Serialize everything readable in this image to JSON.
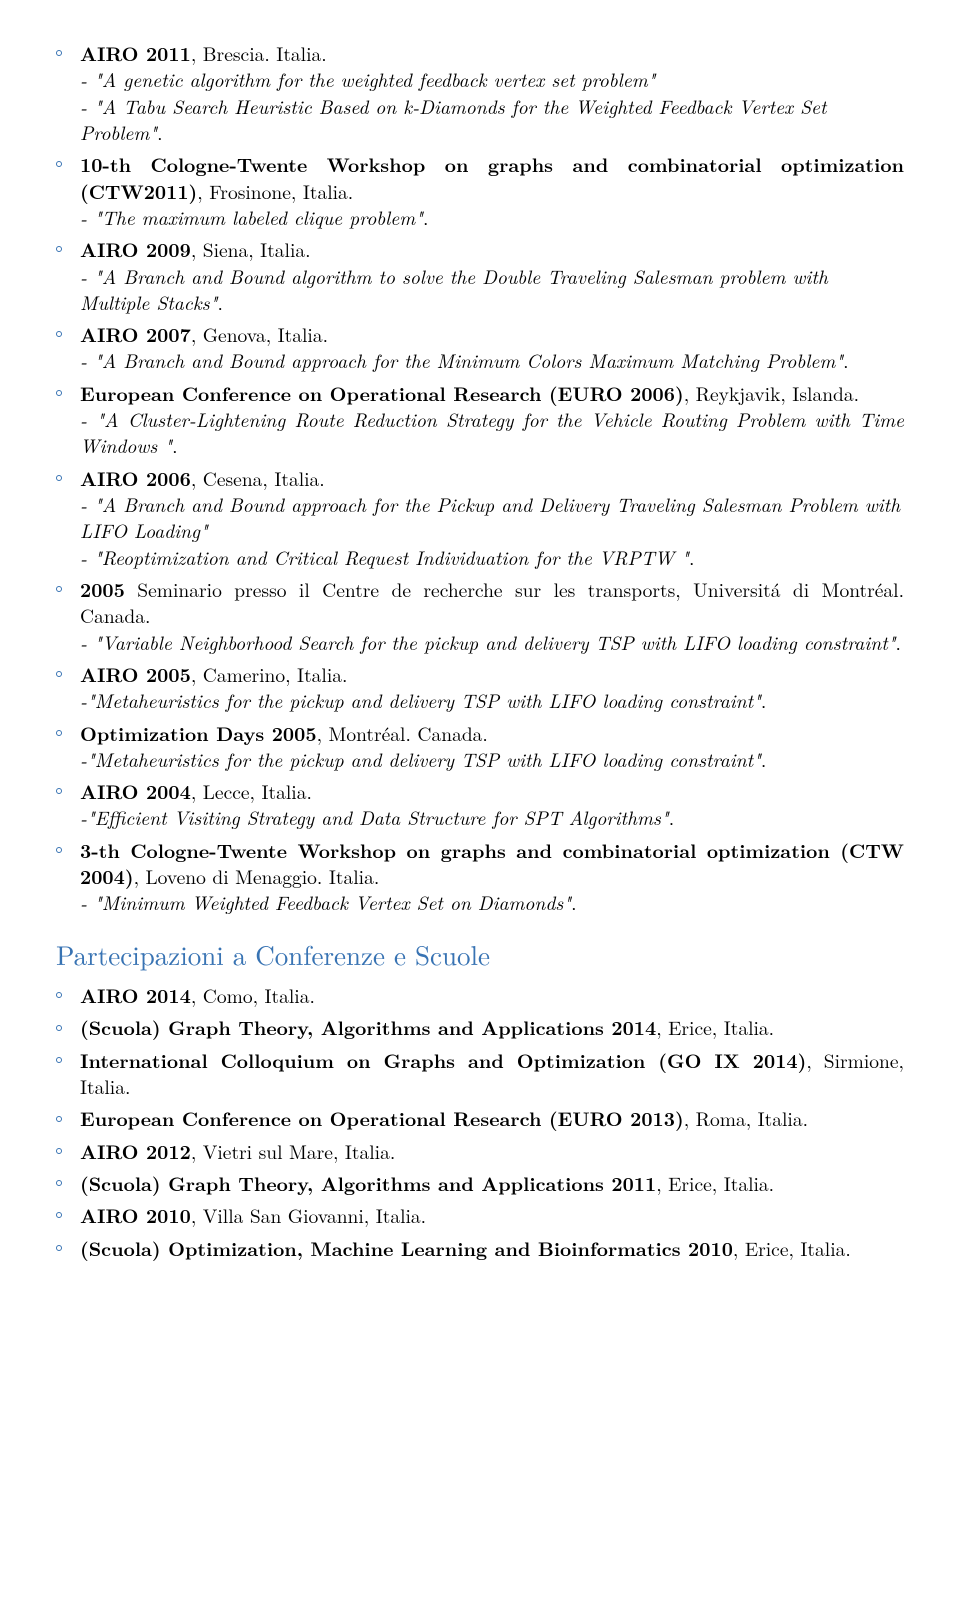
{
  "items": [
    {
      "head_bold": "AIRO 2011",
      "head_rest": ", Brescia. Italia.",
      "subs": [
        {
          "italic": "- \"A genetic algorithm for the weighted feedback vertex set problem\""
        },
        {
          "italic": "- \"A Tabu Search Heuristic Based on k-Diamonds for the Weighted Feedback Vertex Set Problem\"",
          "tail": "."
        }
      ]
    },
    {
      "head_bold": "10-th Cologne-Twente Workshop on graphs and combinatorial optimization (CTW2011)",
      "head_rest": ", Frosinone, Italia.",
      "subs": [
        {
          "italic": "- \"The maximum labeled clique problem\"",
          "tail": "."
        }
      ],
      "just": true
    },
    {
      "head_bold": "AIRO 2009",
      "head_rest": ", Siena, Italia.",
      "subs": [
        {
          "italic": "- \"A Branch and Bound algorithm to solve the Double Traveling Salesman problem with Multiple Stacks\"",
          "tail": "."
        }
      ]
    },
    {
      "head_bold": "AIRO 2007",
      "head_rest": ", Genova, Italia.",
      "subs": [
        {
          "italic": "- \"A Branch and Bound approach for the Minimum Colors Maximum Matching Problem\"",
          "tail": "."
        }
      ]
    },
    {
      "head_bold": "European Conference on Operational Research (EURO 2006)",
      "head_rest": ", Reykjavik, Islanda.",
      "subs": [
        {
          "italic": "- \"A Cluster-Lightening Route Reduction Strategy for the Vehicle Routing Problem with Time Windows \"",
          "tail": "."
        }
      ],
      "just": true
    },
    {
      "head_bold": "AIRO 2006",
      "head_rest": ", Cesena, Italia.",
      "subs": [
        {
          "italic": "- \"A Branch and Bound approach for the Pickup and Delivery Traveling Salesman Problem with LIFO Loading\""
        },
        {
          "italic": "- \"Reoptimization and Critical Request Individuation for the VRPTW \"",
          "tail": "."
        }
      ]
    },
    {
      "head_bold": "2005",
      "head_rest": " Seminario presso il Centre de recherche sur les transports, Universitá di Montréal. Canada.",
      "subs": [
        {
          "italic": "- \"Variable Neighborhood Search for the pickup and delivery TSP with LIFO loading constraint\"",
          "tail": "."
        }
      ],
      "just": true
    },
    {
      "head_bold": "AIRO 2005",
      "head_rest": ", Camerino, Italia.",
      "subs": [
        {
          "italic": "-\"Metaheuristics for the pickup and delivery TSP with LIFO loading constraint\"",
          "tail": "."
        }
      ]
    },
    {
      "head_bold": "Optimization Days 2005",
      "head_rest": ", Montréal. Canada.",
      "subs": [
        {
          "italic": "-\"Metaheuristics for the pickup and delivery TSP with LIFO loading constraint\"",
          "tail": "."
        }
      ]
    },
    {
      "head_bold": "AIRO 2004",
      "head_rest": ", Lecce, Italia.",
      "subs": [
        {
          "italic": "-\"Efficient Visiting Strategy and Data Structure for SPT Algorithms\"",
          "tail": "."
        }
      ]
    },
    {
      "head_bold": "3-th Cologne-Twente Workshop on graphs and combinatorial optimization (CTW 2004)",
      "head_rest": ", Loveno di Menaggio. Italia.",
      "subs": [
        {
          "italic": "- \"Minimum Weighted Feedback Vertex Set on Diamonds\"",
          "tail": "."
        }
      ],
      "just": true
    }
  ],
  "section": "Partecipazioni a Conferenze e Scuole",
  "items2": [
    {
      "head_bold": "AIRO 2014",
      "head_rest": ", Como, Italia."
    },
    {
      "pre": "(Scuola) ",
      "head_bold": "Graph Theory, Algorithms and Applications 2014",
      "head_rest": ", Erice, Italia."
    },
    {
      "head_bold": "International Colloquium on Graphs and Optimization (GO IX 2014)",
      "head_rest": ", Sirmione, Italia.",
      "just": true
    },
    {
      "head_bold": "European Conference on Operational Research (EURO 2013)",
      "head_rest": ", Roma, Italia.",
      "just": true
    },
    {
      "head_bold": "AIRO 2012",
      "head_rest": ", Vietri sul Mare, Italia."
    },
    {
      "pre": "(Scuola) ",
      "head_bold": "Graph Theory, Algorithms and Applications 2011",
      "head_rest": ", Erice, Italia."
    },
    {
      "head_bold": "AIRO 2010",
      "head_rest": ", Villa San Giovanni, Italia."
    },
    {
      "pre": "(Scuola) ",
      "head_bold": "Optimization, Machine Learning and Bioinformatics 2010",
      "head_rest": ", Erice, Italia.",
      "just": true
    }
  ]
}
